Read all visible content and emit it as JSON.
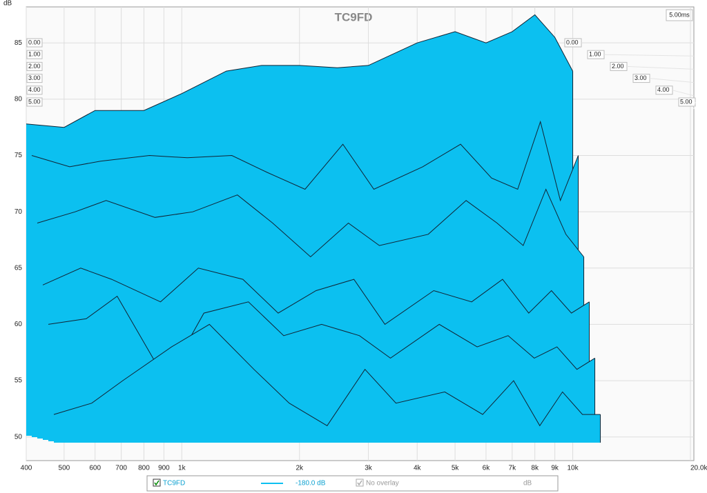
{
  "chart_data": {
    "type": "waterfall",
    "title": "TC9FD",
    "ylabel": "dB",
    "ylim": [
      47.9,
      88.2
    ],
    "yticks": [
      50,
      55,
      60,
      65,
      70,
      75,
      80,
      85
    ],
    "xlim": [
      400,
      20000
    ],
    "log_x": true,
    "grid": true,
    "xticks": [
      400,
      500,
      600,
      700,
      800,
      900,
      {
        "value": 1000,
        "label": "1k"
      },
      {
        "value": 2000,
        "label": "2k"
      },
      {
        "value": 3000,
        "label": "3k"
      },
      {
        "value": 4000,
        "label": "4k"
      },
      {
        "value": 5000,
        "label": "5k"
      },
      {
        "value": 6000,
        "label": "6k"
      },
      {
        "value": 7000,
        "label": "7k"
      },
      {
        "value": 8000,
        "label": "8k"
      },
      {
        "value": 9000,
        "label": "9k"
      },
      {
        "value": 10000,
        "label": "10k"
      },
      {
        "value": 20000,
        "label": "20.0k Hz"
      }
    ],
    "zticks": [
      {
        "value": 0,
        "label": "0.00"
      },
      {
        "value": 1,
        "label": "1.00"
      },
      {
        "value": 2,
        "label": "2.00"
      },
      {
        "value": 3,
        "label": "3.00"
      },
      {
        "value": 4,
        "label": "4.00"
      },
      {
        "value": 5,
        "label": "5.00"
      }
    ],
    "z_end_label": "5.00ms",
    "color": "#0cc0f0",
    "x": [
      400,
      500,
      600,
      800,
      1000,
      1300,
      1600,
      2000,
      2500,
      3000,
      4000,
      5000,
      6000,
      7000,
      8000,
      9000,
      10000
    ],
    "series": [
      {
        "values": [
          77.8,
          77.5,
          79,
          79,
          80.5,
          82.5,
          83,
          83,
          82.8,
          83,
          85,
          86,
          85,
          86,
          87.5,
          85.5,
          82.5
        ]
      },
      {
        "values": [
          75,
          74,
          74.5,
          75,
          74.8,
          75,
          73.5,
          72,
          76,
          72,
          74,
          76,
          73,
          72,
          78,
          71,
          75
        ]
      },
      {
        "values": [
          69,
          70,
          71,
          69.5,
          70,
          71.5,
          69,
          66,
          69,
          67,
          68,
          71,
          69,
          67,
          72,
          68,
          66
        ]
      },
      {
        "values": [
          63.5,
          65,
          64,
          62,
          65,
          64,
          61,
          63,
          64,
          60,
          63,
          62,
          64,
          61,
          63,
          61,
          62
        ]
      },
      {
        "values": [
          60,
          60.5,
          62.5,
          55,
          61,
          62,
          59,
          60,
          59,
          57,
          60,
          58,
          59,
          57,
          58,
          56,
          57
        ]
      },
      {
        "values": [
          52,
          53,
          55,
          58,
          60,
          56,
          53,
          51,
          56,
          53,
          54,
          52,
          55,
          51,
          54,
          52,
          52
        ]
      }
    ],
    "legend": {
      "trace": "TC9FD",
      "level": "-180.0 dB",
      "overlay": "No overlay",
      "unit": "dB"
    }
  }
}
